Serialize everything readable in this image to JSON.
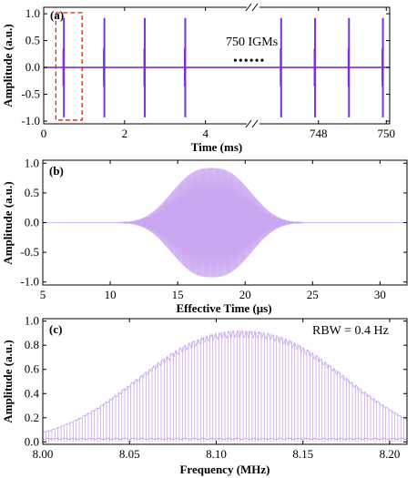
{
  "colors": {
    "signal_a": "#7B2FE0",
    "signal_bc": "#C9A6F0",
    "highlight": "#E0301E",
    "axis": "#000000"
  },
  "chart_data": [
    {
      "panel": "(a)",
      "type": "line",
      "xlabel": "Time (ms)",
      "ylabel": "Amplitude (a.u.)",
      "x_ticks_left": [
        "0",
        "2",
        "4"
      ],
      "x_ticks_right": [
        "748",
        "750"
      ],
      "y_ticks": [
        "-1.0",
        "-0.5",
        "0.0",
        "0.5",
        "1.0"
      ],
      "xlim_left": [
        0,
        5.2
      ],
      "xlim_right": [
        746.1,
        750.1
      ],
      "ylim": [
        -1.05,
        1.12
      ],
      "axis_break": true,
      "pulse_times_ms": [
        0.5,
        1.5,
        2.5,
        3.5,
        746.9,
        747.9,
        748.9,
        749.9
      ],
      "pulse_amplitude_pos": 0.92,
      "pulse_amplitude_neg": -0.93,
      "annotation": "750 IGMs",
      "ellipsis": "••••••",
      "highlight_box_x": [
        0.3,
        0.95
      ],
      "highlight_box_y": [
        -0.98,
        1.02
      ]
    },
    {
      "panel": "(b)",
      "type": "line",
      "xlabel": "Effective Time (μs)",
      "ylabel": "Amplitude (a.u.)",
      "x_ticks": [
        "5",
        "10",
        "15",
        "20",
        "25",
        "30"
      ],
      "y_ticks": [
        "-1.0",
        "-0.5",
        "0.0",
        "0.5",
        "1.0"
      ],
      "xlim": [
        5,
        32
      ],
      "ylim": [
        -1.05,
        1.05
      ],
      "envelope_center_us": 17.5,
      "envelope_peak": 0.92,
      "envelope_visible_range_us": [
        10,
        25
      ]
    },
    {
      "panel": "(c)",
      "type": "line",
      "xlabel": "Frequency (MHz)",
      "ylabel": "Amplitude (a.u.)",
      "x_ticks": [
        "8.00",
        "8.05",
        "8.10",
        "8.15",
        "8.20"
      ],
      "y_ticks": [
        "0.0",
        "0.2",
        "0.4",
        "0.6",
        "0.8",
        "1.0"
      ],
      "xlim": [
        8.0,
        8.21
      ],
      "ylim": [
        -0.02,
        1.02
      ],
      "annotation": "RBW = 0.4 Hz",
      "spectrum_center_mhz": 8.115,
      "spectrum_peak": 0.92,
      "noise_floor": 0.03
    }
  ]
}
